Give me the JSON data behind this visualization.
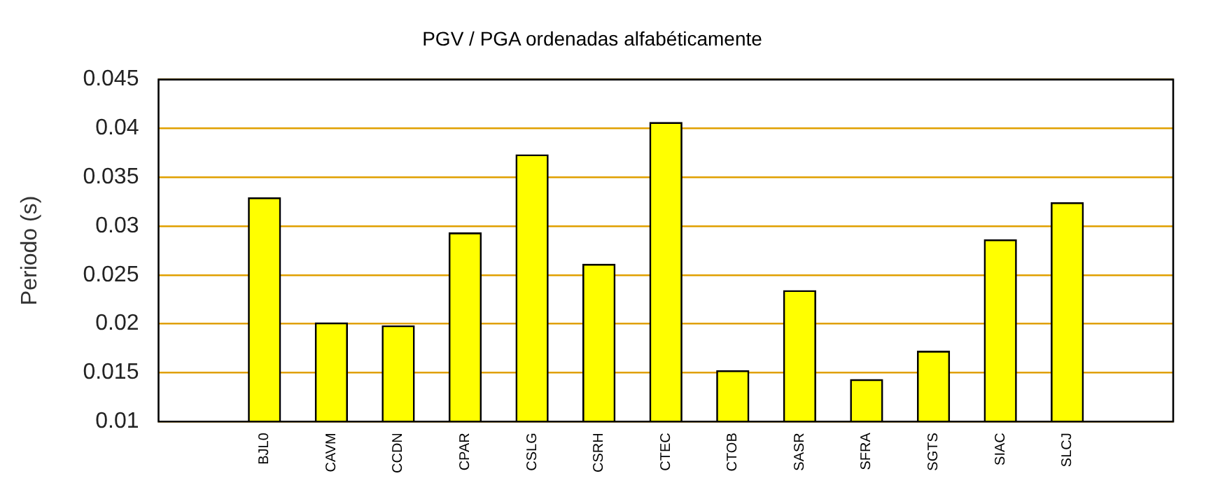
{
  "chart_data": {
    "type": "bar",
    "title": "PGV / PGA ordenadas alfabéticamente",
    "ylabel": "Periodo (s)",
    "categories": [
      "BJL0",
      "CAVM",
      "CCDN",
      "CPAR",
      "CSLG",
      "CSRH",
      "CTEC",
      "CTOB",
      "SASR",
      "SFRA",
      "SGTS",
      "SIAC",
      "SLCJ"
    ],
    "values": [
      0.0329,
      0.0201,
      0.0198,
      0.0293,
      0.0373,
      0.0261,
      0.0406,
      0.0152,
      0.0234,
      0.0143,
      0.0172,
      0.0286,
      0.0324
    ],
    "color": "#ffff00",
    "ylim": [
      0.01,
      0.045
    ],
    "yticks": [
      0.01,
      0.015,
      0.02,
      0.025,
      0.03,
      0.035,
      0.04,
      0.045
    ],
    "grid": "y",
    "legend": false
  }
}
